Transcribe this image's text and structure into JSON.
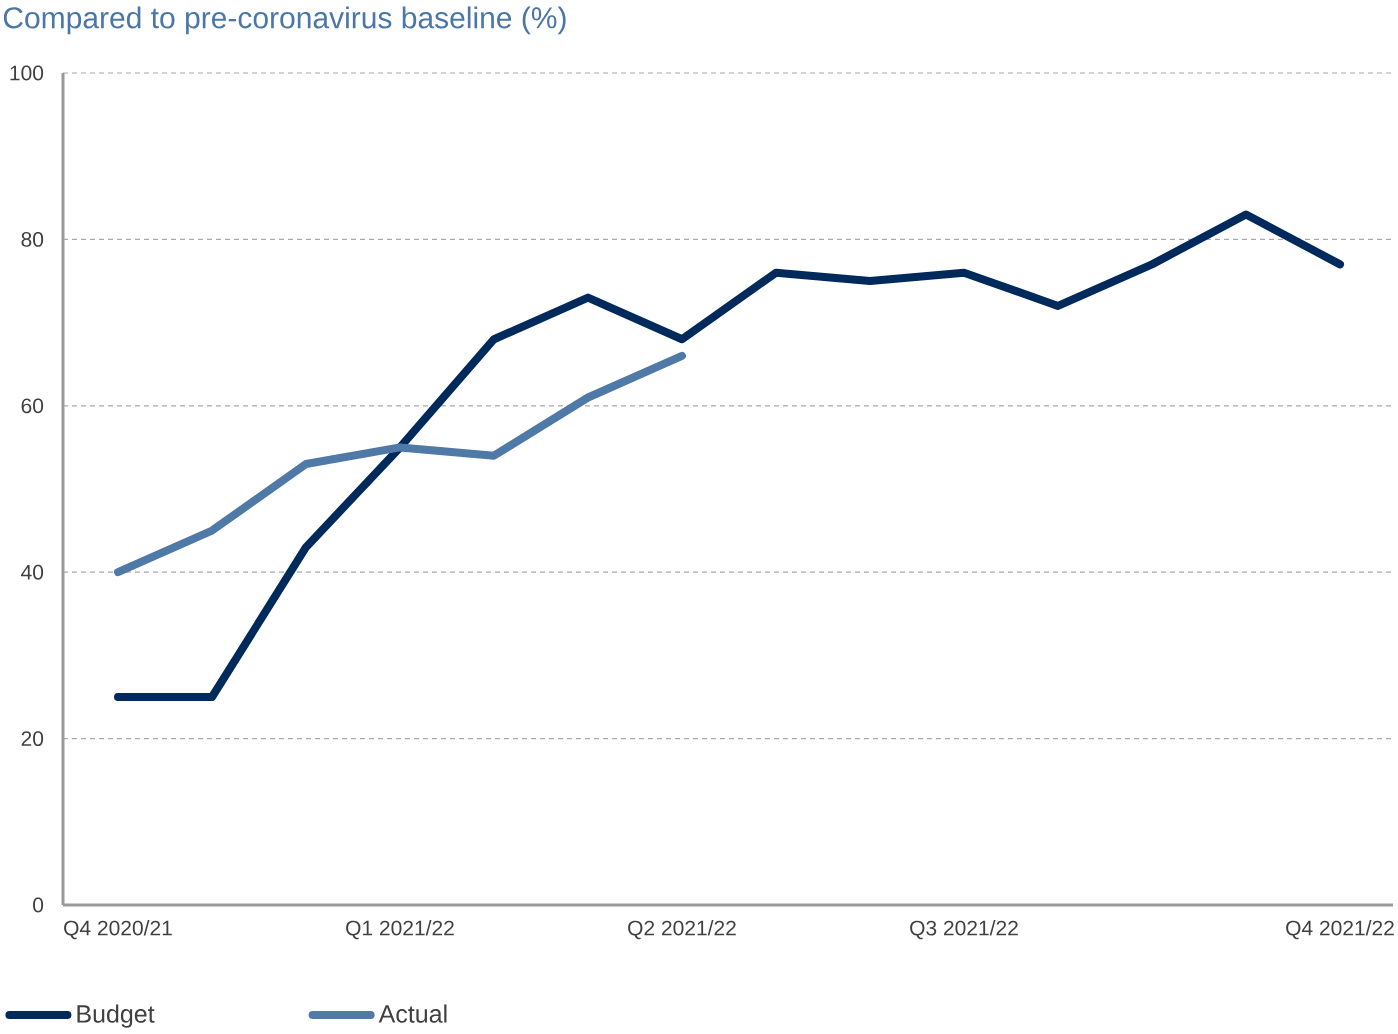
{
  "chart_data": {
    "type": "line",
    "title": "Compared to pre-coronavirus baseline (%)",
    "categories": [
      "Q4 2020/21",
      null,
      null,
      "Q1 2021/22",
      null,
      null,
      "Q2 2021/22",
      null,
      null,
      "Q3 2021/22",
      null,
      null,
      null,
      "Q4 2021/22"
    ],
    "series": [
      {
        "name": "Budget",
        "color": "#002a5c",
        "values": [
          25,
          25,
          43,
          55,
          68,
          73,
          68,
          76,
          75,
          76,
          72,
          77,
          83,
          77
        ]
      },
      {
        "name": "Actual",
        "color": "#4f79a7",
        "values": [
          40,
          45,
          53,
          55,
          54,
          61,
          66,
          null,
          null,
          null,
          null,
          null,
          null,
          null
        ]
      }
    ],
    "ylim": [
      0,
      100
    ],
    "yticks": [
      0,
      20,
      40,
      60,
      80,
      100
    ],
    "grid": "y",
    "legend": "bottom",
    "marker": "none",
    "line_style": "solid"
  }
}
